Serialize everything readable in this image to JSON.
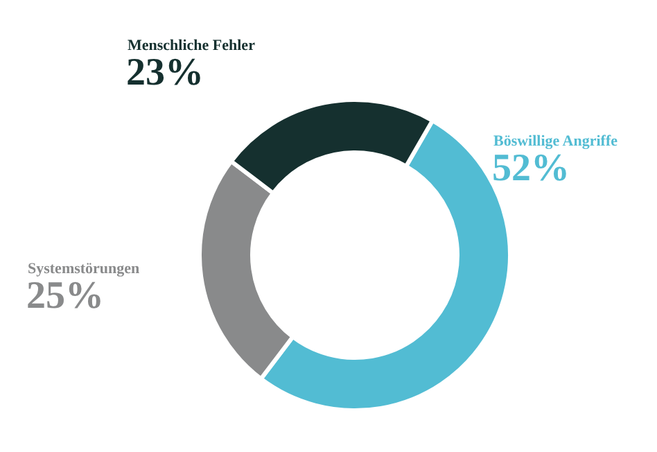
{
  "chart_data": {
    "type": "donut",
    "categories": [
      "Böswillige Angriffe",
      "Systemstörungen",
      "Menschliche Fehler"
    ],
    "values": [
      52,
      25,
      23
    ],
    "colors": [
      "#52bcd3",
      "#898a8b",
      "#15302f"
    ],
    "value_labels": [
      "52%",
      "25%",
      "23%"
    ]
  }
}
